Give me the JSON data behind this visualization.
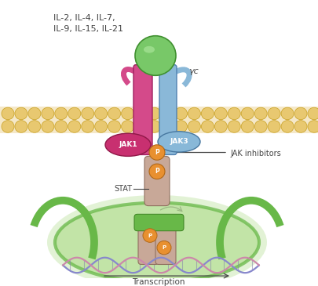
{
  "bg_color": "#ffffff",
  "membrane_color": "#f5e8c8",
  "membrane_circle_color": "#e8c870",
  "receptor_left_color": "#d44a8a",
  "receptor_right_color": "#8ab8d8",
  "ligand_color": "#78c868",
  "jak1_color": "#c83070",
  "jak3_color": "#88b8d8",
  "stat_color": "#c8a898",
  "p_circle_color": "#e89030",
  "p_text_color": "#ffffff",
  "dna_color1": "#8888cc",
  "dna_color2": "#cc88aa",
  "nucleus_color": "#b8e098",
  "nucleus_edge_color": "#68b848",
  "arrow_color": "#444444",
  "text_color": "#444444",
  "il_text": "IL-2, IL-4, IL-7,\nIL-9, IL-15, IL-21",
  "gamma_c_text": "γc",
  "jak1_text": "JAK1",
  "jak3_text": "JAK3",
  "stat_text": "STAT",
  "jak_inhibitors_text": "JAK inhibitors",
  "transcription_text": "Transcription",
  "p_text": "P"
}
